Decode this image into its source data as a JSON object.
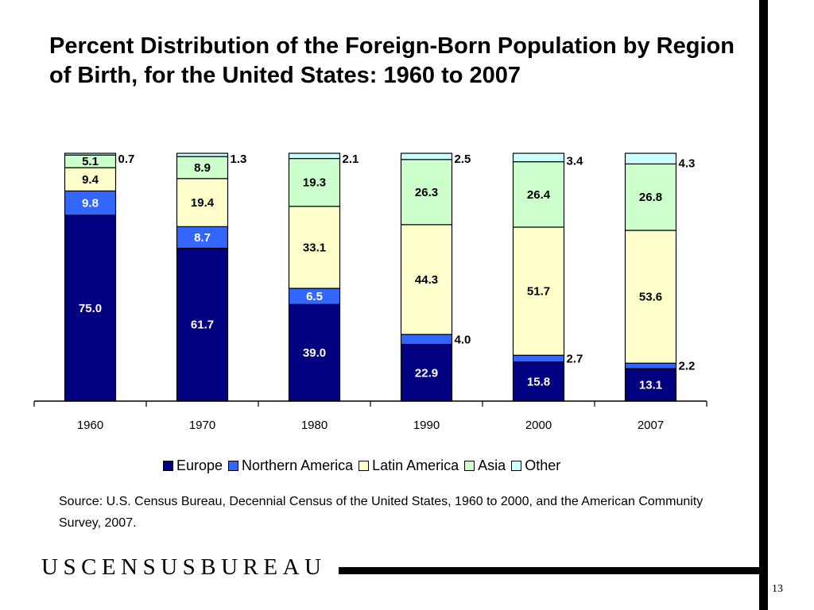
{
  "title": "Percent Distribution of the Foreign-Born Population by Region of Birth, for the United States: 1960 to 2007",
  "source": "Source: U.S. Census Bureau, Decennial Census of the United States, 1960 to 2000, and the American Community Survey, 2007.",
  "logo_text": "USCENSUSBUREAU",
  "page_number": "13",
  "colors": {
    "Europe": "#000080",
    "Northern America": "#3366ff",
    "Latin America": "#ffffcc",
    "Asia": "#ccffcc",
    "Other": "#ccffff"
  },
  "chart_data": {
    "type": "bar",
    "stacked": true,
    "categories": [
      "1960",
      "1970",
      "1980",
      "1990",
      "2000",
      "2007"
    ],
    "ylim": [
      0,
      100
    ],
    "series": [
      {
        "name": "Europe",
        "values": [
          75.0,
          61.7,
          39.0,
          22.9,
          15.8,
          13.1
        ],
        "labels": [
          "75.0",
          "61.7",
          "39.0",
          "22.9",
          "15.8",
          "13.1"
        ]
      },
      {
        "name": "Northern America",
        "values": [
          9.8,
          8.7,
          6.5,
          4.0,
          2.7,
          2.2
        ],
        "labels": [
          "9.8",
          "8.7",
          "6.5",
          "4.0",
          "2.7",
          "2.2"
        ]
      },
      {
        "name": "Latin America",
        "values": [
          9.4,
          19.4,
          33.1,
          44.3,
          51.7,
          53.6
        ],
        "labels": [
          "9.4",
          "19.4",
          "33.1",
          "44.3",
          "51.7",
          "53.6"
        ]
      },
      {
        "name": "Asia",
        "values": [
          5.1,
          8.9,
          19.3,
          26.3,
          26.4,
          26.8
        ],
        "labels": [
          "5.1",
          "8.9",
          "19.3",
          "26.3",
          "26.4",
          "26.8"
        ]
      },
      {
        "name": "Other",
        "values": [
          0.7,
          1.3,
          2.1,
          2.5,
          3.4,
          4.3
        ],
        "labels": [
          "0.7",
          "1.3",
          "2.1",
          "2.5",
          "3.4",
          "4.3"
        ]
      }
    ]
  }
}
